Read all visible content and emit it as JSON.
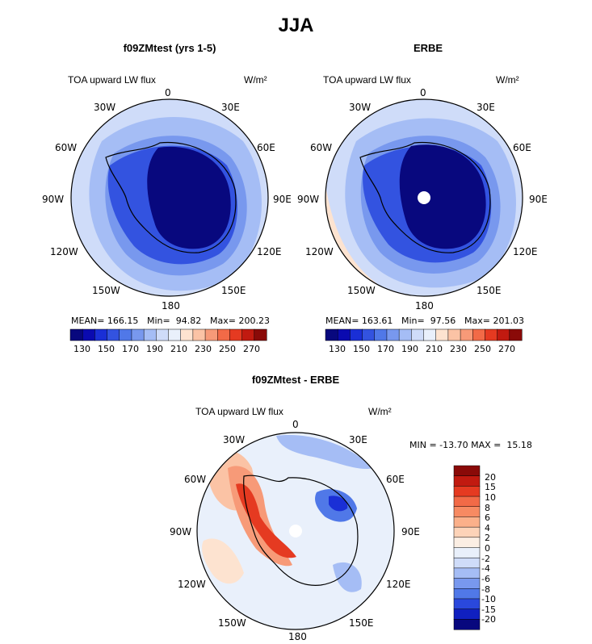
{
  "figure": {
    "title": "JJA"
  },
  "panels": [
    {
      "title": "f09ZMtest (yrs 1-5)",
      "variable": "TOA upward LW flux",
      "units": "W/m²",
      "stats": {
        "mean": "MEAN= 166.15",
        "min": "Min=  94.82",
        "max": "Max= 200.23"
      },
      "lon_labels": [
        "0",
        "30E",
        "60E",
        "90E",
        "120E",
        "150E",
        "180",
        "150W",
        "120W",
        "90W",
        "60W",
        "30W"
      ]
    },
    {
      "title": "ERBE",
      "variable": "TOA upward LW flux",
      "units": "W/m²",
      "stats": {
        "mean": "MEAN= 163.61",
        "min": "Min=  97.56",
        "max": "Max= 201.03"
      },
      "lon_labels": [
        "0",
        "30E",
        "60E",
        "90E",
        "120E",
        "150E",
        "180",
        "150W",
        "120W",
        "90W",
        "60W",
        "30W"
      ]
    },
    {
      "title": "f09ZMtest - ERBE",
      "variable": "TOA upward LW flux",
      "units": "W/m²",
      "stats": {
        "minmax": "MIN = -13.70 MAX =  15.18"
      },
      "lon_labels": [
        "0",
        "30E",
        "60E",
        "90E",
        "120E",
        "150E",
        "180",
        "150W",
        "120W",
        "90W",
        "60W",
        "30W"
      ]
    }
  ],
  "colorbar_horizontal": {
    "labels": [
      "130",
      "150",
      "170",
      "190",
      "210",
      "230",
      "250",
      "270"
    ],
    "colors": [
      "#08087e",
      "#0a0ab0",
      "#1a2fd6",
      "#3353e0",
      "#5078e8",
      "#7898ee",
      "#a5bdf5",
      "#cfdcf9",
      "#e9f0fb",
      "#fde3d0",
      "#fbc3a5",
      "#f79a78",
      "#f26a47",
      "#e53a21",
      "#c11a10",
      "#8a0a08"
    ]
  },
  "colorbar_vertical": {
    "labels": [
      "20",
      "15",
      "10",
      "8",
      "6",
      "4",
      "2",
      "0",
      "-2",
      "-4",
      "-6",
      "-8",
      "-10",
      "-15",
      "-20"
    ],
    "colors": [
      "#8a0a08",
      "#c11a10",
      "#e53a21",
      "#f26a47",
      "#f78a62",
      "#fbb08a",
      "#fdd3b8",
      "#fbeee3",
      "#e9f0fb",
      "#cfdcf9",
      "#a5bdf5",
      "#7898ee",
      "#5078e8",
      "#2a48dc",
      "#1020c0",
      "#08087e"
    ]
  },
  "colors": {
    "ocean_outer": "#cfdcf9",
    "ocean_mid": "#a5bdf5",
    "ice_edge": "#5078e8",
    "antarctica_inner": "#08087e",
    "diff_bg": "#e9f0fb"
  }
}
